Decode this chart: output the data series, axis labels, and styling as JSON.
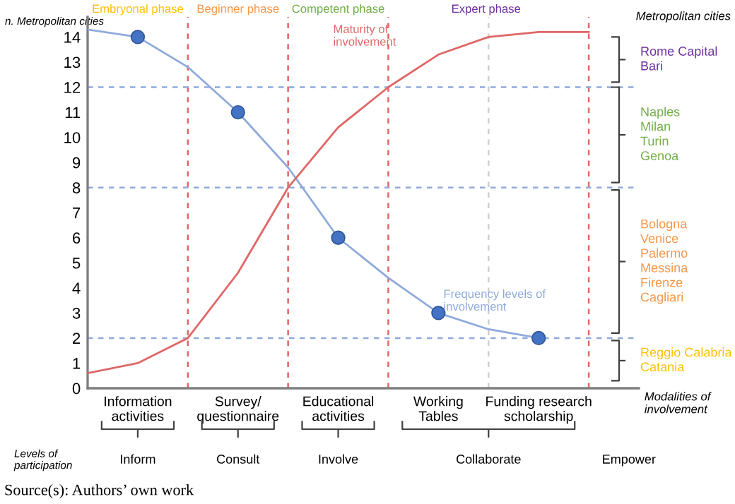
{
  "chart_data": {
    "type": "line",
    "ylabel": "n. Metropolitan cities",
    "xlabel": "Modalities of involvement",
    "categories": [
      null,
      "Information\nactivities",
      null,
      "Survey/\nquestionnaire",
      null,
      "Educational\nactivities",
      null,
      "Working\nTables",
      null,
      "Funding research\nscholarship",
      null
    ],
    "ylim": [
      0,
      14.8
    ],
    "yticks": [
      0,
      1,
      2,
      3,
      4,
      5,
      6,
      7,
      8,
      9,
      10,
      11,
      12,
      13,
      14
    ],
    "grid": "x",
    "legend": false,
    "series": [
      {
        "name": "Frequency levels of involvement",
        "color": "#8faadc",
        "marker": "none",
        "values": [
          14.3,
          14,
          12.8,
          11,
          8.8,
          6,
          4.4,
          3,
          2.35,
          2,
          null
        ]
      },
      {
        "type": "scatter",
        "color": "#4472c4",
        "marker": "circle",
        "values": [
          null,
          14,
          null,
          11,
          null,
          6,
          null,
          3,
          null,
          2,
          null
        ]
      },
      {
        "name": "Maturity of involvement",
        "color": "#e06666",
        "marker": "none",
        "values": [
          0.6,
          1.0,
          2,
          4.6,
          8,
          10.4,
          12,
          13.3,
          14.0,
          14.2,
          14.2
        ]
      }
    ],
    "ref_lines": [
      {
        "axis": "y",
        "value": 2,
        "color": "#8faadc",
        "line_style": "dashed"
      },
      {
        "axis": "y",
        "value": 8,
        "color": "#8faadc",
        "line_style": "dashed"
      },
      {
        "axis": "y",
        "value": 12,
        "color": "#8faadc",
        "line_style": "dashed"
      }
    ],
    "annotations": [
      "Embryonal phase",
      "Beginner phase",
      "Competent phase",
      "Expert phase",
      "Metropolitan cities",
      "Rome Capital\nBari",
      "Naples\nMilan\nTurin\nGenoa",
      "Bologna\nVenice\nPalermo\nMessina\nFirenze\nCagliari",
      "Reggio Calabria\nCatania",
      "Levels of\nparticipation",
      "Inform",
      "Consult",
      "Involve",
      "Collaborate",
      "Empower",
      "Source(s): Authors’ own work"
    ]
  }
}
